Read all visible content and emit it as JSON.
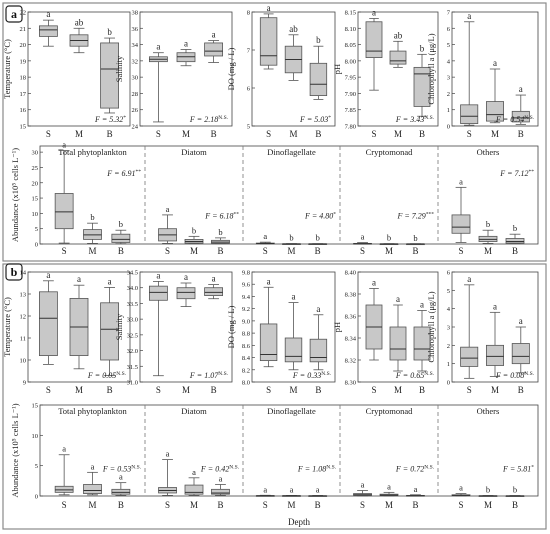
{
  "chart_data": {
    "type": "boxplot",
    "x_label": "Depth",
    "depth_categories": [
      "S",
      "M",
      "B"
    ],
    "colors": {
      "box_fill": "#c8c8c8",
      "box_stroke": "#555555",
      "median": "#333333",
      "frame": "#444444",
      "panel_border": "#8a8a8a"
    },
    "panels": [
      {
        "id": "a",
        "label": "a",
        "env": [
          {
            "name": "temperature",
            "ylabel": "Temperature (°C)",
            "ylim": [
              15,
              22
            ],
            "ticks": [
              15,
              16,
              17,
              18,
              19,
              20,
              21,
              22
            ],
            "stat": "F = 5.32*",
            "letters": [
              "a",
              "ab",
              "b"
            ],
            "boxes": [
              {
                "min": 19.9,
                "q1": 20.5,
                "med": 20.9,
                "q3": 21.15,
                "max": 21.5
              },
              {
                "min": 19.5,
                "q1": 19.9,
                "med": 20.25,
                "q3": 20.6,
                "max": 21.0
              },
              {
                "min": 15.8,
                "q1": 16.1,
                "med": 18.5,
                "q3": 20.1,
                "max": 20.4
              }
            ]
          },
          {
            "name": "salinity",
            "ylabel": "Salinity",
            "ylim": [
              24,
              38
            ],
            "ticks": [
              24,
              26,
              28,
              30,
              32,
              34,
              36,
              38
            ],
            "stat": "F = 2.18N.S.",
            "letters": [
              "a",
              "a",
              "a"
            ],
            "boxes": [
              {
                "min": 24.5,
                "q1": 31.9,
                "med": 32.2,
                "q3": 32.5,
                "max": 33.0
              },
              {
                "min": 31.4,
                "q1": 31.9,
                "med": 32.5,
                "q3": 33.0,
                "max": 33.4
              },
              {
                "min": 31.8,
                "q1": 32.6,
                "med": 33.2,
                "q3": 34.2,
                "max": 34.5
              }
            ]
          },
          {
            "name": "do",
            "ylabel": "DO (mg / L)",
            "ylim": [
              5,
              8
            ],
            "ticks": [
              5,
              6,
              7,
              8
            ],
            "stat": "F = 5.03*",
            "letters": [
              "a",
              "ab",
              "b"
            ],
            "boxes": [
              {
                "min": 6.5,
                "q1": 6.6,
                "med": 6.85,
                "q3": 7.85,
                "max": 7.95
              },
              {
                "min": 6.2,
                "q1": 6.4,
                "med": 6.75,
                "q3": 7.1,
                "max": 7.4
              },
              {
                "min": 5.7,
                "q1": 5.8,
                "med": 6.1,
                "q3": 6.65,
                "max": 7.1
              }
            ]
          },
          {
            "name": "ph",
            "ylabel": "pH",
            "ylim": [
              7.8,
              8.15
            ],
            "ticks": [
              7.8,
              7.85,
              7.9,
              7.95,
              8.0,
              8.05,
              8.1,
              8.15
            ],
            "stat": "F = 3.43N.S.",
            "letters": [
              "a",
              "ab",
              "b"
            ],
            "boxes": [
              {
                "min": 7.91,
                "q1": 8.01,
                "med": 8.03,
                "q3": 8.12,
                "max": 8.13
              },
              {
                "min": 7.98,
                "q1": 7.99,
                "med": 8.0,
                "q3": 8.03,
                "max": 8.06
              },
              {
                "min": 7.83,
                "q1": 7.86,
                "med": 7.96,
                "q3": 7.98,
                "max": 8.02
              }
            ]
          },
          {
            "name": "chla",
            "ylabel": "Chlorophyll a (μg/L)",
            "ylim": [
              0,
              7
            ],
            "ticks": [
              0,
              1,
              2,
              3,
              4,
              5,
              6,
              7
            ],
            "stat": "F = 0.54N.S.",
            "letters": [
              "a",
              "a",
              "a"
            ],
            "boxes": [
              {
                "min": 0.05,
                "q1": 0.15,
                "med": 0.6,
                "q3": 1.3,
                "max": 6.4
              },
              {
                "min": 0.2,
                "q1": 0.3,
                "med": 0.7,
                "q3": 1.5,
                "max": 3.5
              },
              {
                "min": 0.1,
                "q1": 0.25,
                "med": 0.5,
                "q3": 0.9,
                "max": 1.9
              }
            ]
          }
        ],
        "abundance": {
          "ylabel": "Abundance (x10⁵ cells L⁻¹)",
          "ylim": [
            0,
            32
          ],
          "ticks": [
            0,
            5,
            10,
            15,
            20,
            25,
            30
          ],
          "groups": [
            {
              "name": "Total phytoplankton",
              "stat": "F = 6.91**",
              "letters": [
                "a",
                "b",
                "b"
              ],
              "boxes": [
                {
                  "min": 0.3,
                  "q1": 5.0,
                  "med": 10.5,
                  "q3": 16.5,
                  "max": 30.5
                },
                {
                  "min": 0.2,
                  "q1": 1.5,
                  "med": 3.0,
                  "q3": 4.7,
                  "max": 6.8
                },
                {
                  "min": 0.1,
                  "q1": 0.5,
                  "med": 1.5,
                  "q3": 3.2,
                  "max": 4.5
                }
              ]
            },
            {
              "name": "Diatom",
              "stat": "F = 6.18**",
              "letters": [
                "a",
                "b",
                "b"
              ],
              "boxes": [
                {
                  "min": 0.2,
                  "q1": 1.0,
                  "med": 3.0,
                  "q3": 5.0,
                  "max": 9.5
                },
                {
                  "min": 0.1,
                  "q1": 0.3,
                  "med": 0.8,
                  "q3": 1.5,
                  "max": 2.5
                },
                {
                  "min": 0.1,
                  "q1": 0.2,
                  "med": 0.6,
                  "q3": 1.2,
                  "max": 2.0
                }
              ]
            },
            {
              "name": "Dinoflagellate",
              "stat": "F = 4.80*",
              "letters": [
                "a",
                "b",
                "b"
              ],
              "boxes": [
                {
                  "min": 0,
                  "q1": 0.1,
                  "med": 0.15,
                  "q3": 0.3,
                  "max": 0.6
                },
                {
                  "min": 0,
                  "q1": 0.02,
                  "med": 0.05,
                  "q3": 0.08,
                  "max": 0.12
                },
                {
                  "min": 0,
                  "q1": 0.02,
                  "med": 0.04,
                  "q3": 0.07,
                  "max": 0.1
                }
              ]
            },
            {
              "name": "Cryptomonad",
              "stat": "F = 7.29***",
              "letters": [
                "a",
                "b",
                "b"
              ],
              "boxes": [
                {
                  "min": 0,
                  "q1": 0.05,
                  "med": 0.1,
                  "q3": 0.2,
                  "max": 0.45
                },
                {
                  "min": 0,
                  "q1": 0.02,
                  "med": 0.04,
                  "q3": 0.06,
                  "max": 0.1
                },
                {
                  "min": 0,
                  "q1": 0.01,
                  "med": 0.03,
                  "q3": 0.05,
                  "max": 0.08
                }
              ]
            },
            {
              "name": "Others",
              "stat": "F = 7.12**",
              "letters": [
                "a",
                "b",
                "b"
              ],
              "boxes": [
                {
                  "min": 0.5,
                  "q1": 3.5,
                  "med": 5.5,
                  "q3": 9.5,
                  "max": 18.5
                },
                {
                  "min": 0.2,
                  "q1": 0.8,
                  "med": 1.5,
                  "q3": 2.5,
                  "max": 4.5
                },
                {
                  "min": 0.1,
                  "q1": 0.3,
                  "med": 0.8,
                  "q3": 1.8,
                  "max": 3.2
                }
              ]
            }
          ]
        }
      },
      {
        "id": "b",
        "label": "b",
        "env": [
          {
            "name": "temperature",
            "ylabel": "Temperature (°C)",
            "ylim": [
              9,
              14
            ],
            "ticks": [
              9,
              10,
              11,
              12,
              13,
              14
            ],
            "stat": "F = 0.05N.S.",
            "letters": [
              "a",
              "a",
              "a"
            ],
            "boxes": [
              {
                "min": 9.8,
                "q1": 10.2,
                "med": 11.9,
                "q3": 13.1,
                "max": 13.6
              },
              {
                "min": 9.6,
                "q1": 10.2,
                "med": 11.5,
                "q3": 12.8,
                "max": 13.4
              },
              {
                "min": 9.3,
                "q1": 10.0,
                "med": 11.4,
                "q3": 12.6,
                "max": 13.3
              }
            ]
          },
          {
            "name": "salinity",
            "ylabel": "Salinity",
            "ylim": [
              31,
              34.5
            ],
            "ticks": [
              31.0,
              31.5,
              32.0,
              32.5,
              33.0,
              33.5,
              34.0,
              34.5
            ],
            "stat": "F = 1.07N.S.",
            "letters": [
              "a",
              "a",
              "a"
            ],
            "boxes": [
              {
                "min": 31.2,
                "q1": 33.6,
                "med": 33.85,
                "q3": 34.05,
                "max": 34.2
              },
              {
                "min": 33.4,
                "q1": 33.65,
                "med": 33.85,
                "q3": 34.0,
                "max": 34.15
              },
              {
                "min": 33.65,
                "q1": 33.75,
                "med": 33.85,
                "q3": 34.0,
                "max": 34.1
              }
            ]
          },
          {
            "name": "do",
            "ylabel": "DO (mg / L)",
            "ylim": [
              8.0,
              9.8
            ],
            "ticks": [
              8.0,
              8.2,
              8.4,
              8.6,
              8.8,
              9.0,
              9.2,
              9.4,
              9.6,
              9.8
            ],
            "stat": "F = 0.33N.S.",
            "letters": [
              "a",
              "a",
              "a"
            ],
            "boxes": [
              {
                "min": 8.25,
                "q1": 8.35,
                "med": 8.45,
                "q3": 8.95,
                "max": 9.55
              },
              {
                "min": 8.2,
                "q1": 8.33,
                "med": 8.42,
                "q3": 8.72,
                "max": 9.3
              },
              {
                "min": 8.2,
                "q1": 8.33,
                "med": 8.4,
                "q3": 8.7,
                "max": 9.1
              }
            ]
          },
          {
            "name": "ph",
            "ylabel": "pH",
            "ylim": [
              8.3,
              8.4
            ],
            "ticks": [
              8.3,
              8.32,
              8.34,
              8.36,
              8.38,
              8.4
            ],
            "stat": "F = 0.65N.S.",
            "letters": [
              "a",
              "a",
              "a"
            ],
            "boxes": [
              {
                "min": 8.32,
                "q1": 8.33,
                "med": 8.35,
                "q3": 8.37,
                "max": 8.385
              },
              {
                "min": 8.31,
                "q1": 8.32,
                "med": 8.33,
                "q3": 8.35,
                "max": 8.37
              },
              {
                "min": 8.31,
                "q1": 8.32,
                "med": 8.33,
                "q3": 8.35,
                "max": 8.365
              }
            ]
          },
          {
            "name": "chla",
            "ylabel": "Chlorophyll a (μg/L)",
            "ylim": [
              0,
              6
            ],
            "ticks": [
              0,
              1,
              2,
              3,
              4,
              5,
              6
            ],
            "stat": "F = 0.08N.S.",
            "letters": [
              "a",
              "a",
              "a"
            ],
            "boxes": [
              {
                "min": 0.2,
                "q1": 0.85,
                "med": 1.3,
                "q3": 1.9,
                "max": 5.3
              },
              {
                "min": 0.3,
                "q1": 0.9,
                "med": 1.4,
                "q3": 2.0,
                "max": 3.8
              },
              {
                "min": 0.5,
                "q1": 1.0,
                "med": 1.4,
                "q3": 2.1,
                "max": 3.0
              }
            ]
          }
        ],
        "abundance": {
          "ylabel": "Abundance (x10⁵ cells L⁻¹)",
          "ylim": [
            0,
            15
          ],
          "ticks": [
            0,
            5,
            10,
            15
          ],
          "groups": [
            {
              "name": "Total phytoplankton",
              "stat": "F = 0.53N.S.",
              "letters": [
                "a",
                "a",
                "a"
              ],
              "boxes": [
                {
                  "min": 0.2,
                  "q1": 0.6,
                  "med": 1.0,
                  "q3": 1.6,
                  "max": 6.8
                },
                {
                  "min": 0.2,
                  "q1": 0.4,
                  "med": 0.9,
                  "q3": 1.9,
                  "max": 3.9
                },
                {
                  "min": 0.1,
                  "q1": 0.3,
                  "med": 0.6,
                  "q3": 1.1,
                  "max": 2.2
                }
              ]
            },
            {
              "name": "Diatom",
              "stat": "F = 0.42N.S.",
              "letters": [
                "a",
                "a",
                "a"
              ],
              "boxes": [
                {
                  "min": 0.1,
                  "q1": 0.5,
                  "med": 0.9,
                  "q3": 1.4,
                  "max": 6.0
                },
                {
                  "min": 0.1,
                  "q1": 0.3,
                  "med": 0.6,
                  "q3": 1.8,
                  "max": 3.0
                },
                {
                  "min": 0.1,
                  "q1": 0.3,
                  "med": 0.5,
                  "q3": 1.1,
                  "max": 1.9
                }
              ]
            },
            {
              "name": "Dinoflagellate",
              "stat": "F = 1.08N.S.",
              "letters": [
                "a",
                "a",
                "a"
              ],
              "boxes": [
                {
                  "min": 0,
                  "q1": 0.02,
                  "med": 0.04,
                  "q3": 0.07,
                  "max": 0.12
                },
                {
                  "min": 0,
                  "q1": 0.02,
                  "med": 0.04,
                  "q3": 0.06,
                  "max": 0.1
                },
                {
                  "min": 0,
                  "q1": 0.02,
                  "med": 0.03,
                  "q3": 0.05,
                  "max": 0.09
                }
              ]
            },
            {
              "name": "Cryptomonad",
              "stat": "F = 0.72N.S.",
              "letters": [
                "a",
                "a",
                "a"
              ],
              "boxes": [
                {
                  "min": 0,
                  "q1": 0.1,
                  "med": 0.2,
                  "q3": 0.4,
                  "max": 0.9
                },
                {
                  "min": 0,
                  "q1": 0.05,
                  "med": 0.15,
                  "q3": 0.3,
                  "max": 0.6
                },
                {
                  "min": 0,
                  "q1": 0.02,
                  "med": 0.05,
                  "q3": 0.1,
                  "max": 0.2
                }
              ]
            },
            {
              "name": "Others",
              "stat": "F = 5.81*",
              "letters": [
                "a",
                "b",
                "b"
              ],
              "boxes": [
                {
                  "min": 0,
                  "q1": 0.05,
                  "med": 0.1,
                  "q3": 0.2,
                  "max": 0.4
                },
                {
                  "min": 0,
                  "q1": 0.01,
                  "med": 0.03,
                  "q3": 0.05,
                  "max": 0.08
                },
                {
                  "min": 0,
                  "q1": 0.01,
                  "med": 0.02,
                  "q3": 0.04,
                  "max": 0.07
                }
              ]
            }
          ]
        }
      }
    ]
  }
}
